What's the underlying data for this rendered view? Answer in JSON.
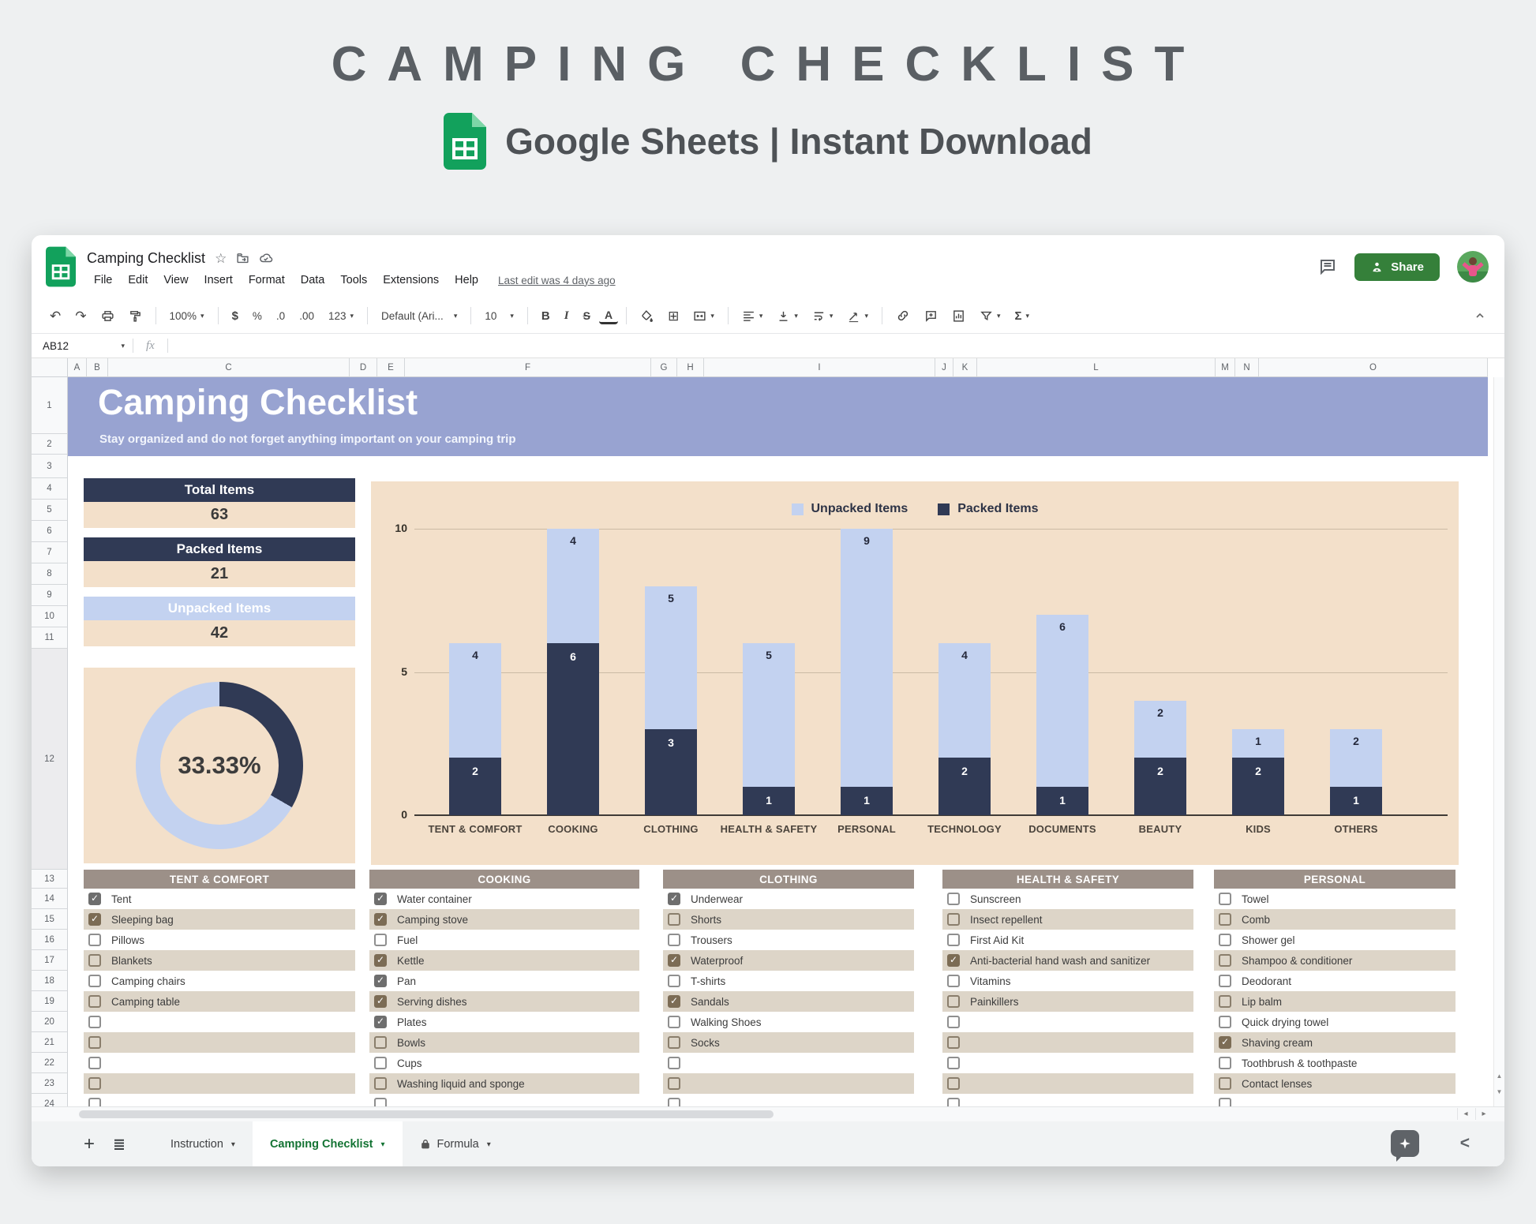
{
  "hero": {
    "title": "CAMPING CHECKLIST",
    "subtitle": "Google Sheets | Instant Download"
  },
  "window": {
    "doc_title": "Camping Checklist",
    "menus": [
      "File",
      "Edit",
      "View",
      "Insert",
      "Format",
      "Data",
      "Tools",
      "Extensions",
      "Help"
    ],
    "last_edit": "Last edit was 4 days ago",
    "share_label": "Share",
    "name_box": "AB12",
    "formula_symbol": "fx",
    "toolbar": {
      "zoom": "100%",
      "currency": "$",
      "percent": "%",
      "decimal_decrease": ".0",
      "decimal_increase": ".00",
      "more_formats": "123",
      "font": "Default (Ari...",
      "font_size": "10",
      "bold": "B",
      "italic": "I",
      "strikethrough": "S",
      "text_color": "A",
      "functions": "Σ"
    },
    "column_letters": [
      "A",
      "B",
      "C",
      "D",
      "E",
      "F",
      "G",
      "H",
      "I",
      "J",
      "K",
      "L",
      "M",
      "N",
      "O"
    ],
    "row_numbers": [
      1,
      2,
      3,
      4,
      5,
      6,
      7,
      8,
      9,
      10,
      11,
      12,
      13,
      14,
      15,
      16,
      17,
      18,
      19,
      20,
      21,
      22,
      23,
      24
    ],
    "tabs": [
      {
        "label": "Instruction",
        "active": false,
        "locked": false
      },
      {
        "label": "Camping Checklist",
        "active": true,
        "locked": false
      },
      {
        "label": "Formula",
        "active": false,
        "locked": true
      }
    ]
  },
  "sheet": {
    "banner_title": "Camping Checklist",
    "banner_subtitle": "Stay organized and do not forget anything important on your camping trip",
    "stats": [
      {
        "label": "Total Items",
        "value": "63",
        "style": "navy"
      },
      {
        "label": "Packed Items",
        "value": "21",
        "style": "navy"
      },
      {
        "label": "Unpacked Items",
        "value": "42",
        "style": "blue"
      }
    ],
    "colors": {
      "navy": "#303a55",
      "light_blue": "#c3d2f0",
      "beige": "#f3e0ca",
      "banner": "#98a3d1",
      "taupe_header": "#9c9088",
      "row_shade": "#ddd5c8",
      "sheets_green": "#12a15c"
    }
  },
  "chart_data": [
    {
      "type": "bar",
      "subtype": "stacked-column",
      "categories": [
        "TENT & COMFORT",
        "COOKING",
        "CLOTHING",
        "HEALTH & SAFETY",
        "PERSONAL",
        "TECHNOLOGY",
        "DOCUMENTS",
        "BEAUTY",
        "KIDS",
        "OTHERS"
      ],
      "series": [
        {
          "name": "Packed Items",
          "color": "#303a55",
          "values": [
            2,
            6,
            3,
            1,
            1,
            2,
            1,
            2,
            2,
            1
          ]
        },
        {
          "name": "Unpacked Items",
          "color": "#c3d2f0",
          "values": [
            4,
            4,
            5,
            5,
            9,
            4,
            6,
            2,
            1,
            2
          ]
        }
      ],
      "ylim": [
        0,
        10
      ],
      "yticks": [
        0,
        5,
        10
      ],
      "grid": true,
      "legend_position": "top-center",
      "legend_order": [
        "Unpacked Items",
        "Packed Items"
      ]
    },
    {
      "type": "pie",
      "subtype": "donut",
      "title": "Packed ratio",
      "center_label": "33.33%",
      "slices": [
        {
          "name": "Packed Items",
          "value": 21,
          "fraction": 0.3333,
          "color": "#303a55"
        },
        {
          "name": "Unpacked Items",
          "value": 42,
          "fraction": 0.6667,
          "color": "#c3d2f0"
        }
      ]
    }
  ],
  "checklists": [
    {
      "title": "TENT & COMFORT",
      "items": [
        {
          "label": "Tent",
          "checked": true
        },
        {
          "label": "Sleeping bag",
          "checked": true
        },
        {
          "label": "Pillows",
          "checked": false
        },
        {
          "label": "Blankets",
          "checked": false
        },
        {
          "label": "Camping chairs",
          "checked": false
        },
        {
          "label": "Camping table",
          "checked": false
        },
        {
          "label": "",
          "checked": false
        },
        {
          "label": "",
          "checked": false
        },
        {
          "label": "",
          "checked": false
        },
        {
          "label": "",
          "checked": false
        },
        {
          "label": "",
          "checked": false
        }
      ]
    },
    {
      "title": "COOKING",
      "items": [
        {
          "label": "Water container",
          "checked": true
        },
        {
          "label": "Camping stove",
          "checked": true
        },
        {
          "label": "Fuel",
          "checked": false
        },
        {
          "label": "Kettle",
          "checked": true
        },
        {
          "label": "Pan",
          "checked": true
        },
        {
          "label": "Serving dishes",
          "checked": true
        },
        {
          "label": "Plates",
          "checked": true
        },
        {
          "label": "Bowls",
          "checked": false
        },
        {
          "label": "Cups",
          "checked": false
        },
        {
          "label": "Washing liquid and sponge",
          "checked": false
        },
        {
          "label": "",
          "checked": false
        }
      ]
    },
    {
      "title": "CLOTHING",
      "items": [
        {
          "label": "Underwear",
          "checked": true
        },
        {
          "label": "Shorts",
          "checked": false
        },
        {
          "label": "Trousers",
          "checked": false
        },
        {
          "label": "Waterproof",
          "checked": true
        },
        {
          "label": "T-shirts",
          "checked": false
        },
        {
          "label": "Sandals",
          "checked": true
        },
        {
          "label": "Walking Shoes",
          "checked": false
        },
        {
          "label": "Socks",
          "checked": false
        },
        {
          "label": "",
          "checked": false
        },
        {
          "label": "",
          "checked": false
        },
        {
          "label": "",
          "checked": false
        }
      ]
    },
    {
      "title": "HEALTH & SAFETY",
      "items": [
        {
          "label": "Sunscreen",
          "checked": false
        },
        {
          "label": "Insect repellent",
          "checked": false
        },
        {
          "label": "First Aid Kit",
          "checked": false
        },
        {
          "label": "Anti-bacterial hand wash and sanitizer",
          "checked": true
        },
        {
          "label": "Vitamins",
          "checked": false
        },
        {
          "label": "Painkillers",
          "checked": false
        },
        {
          "label": "",
          "checked": false
        },
        {
          "label": "",
          "checked": false
        },
        {
          "label": "",
          "checked": false
        },
        {
          "label": "",
          "checked": false
        },
        {
          "label": "",
          "checked": false
        }
      ]
    },
    {
      "title": "PERSONAL",
      "items": [
        {
          "label": "Towel",
          "checked": false
        },
        {
          "label": "Comb",
          "checked": false
        },
        {
          "label": "Shower gel",
          "checked": false
        },
        {
          "label": "Shampoo & conditioner",
          "checked": false
        },
        {
          "label": "Deodorant",
          "checked": false
        },
        {
          "label": "Lip balm",
          "checked": false
        },
        {
          "label": "Quick drying towel",
          "checked": false
        },
        {
          "label": "Shaving cream",
          "checked": true
        },
        {
          "label": "Toothbrush & toothpaste",
          "checked": false
        },
        {
          "label": "Contact lenses",
          "checked": false
        },
        {
          "label": "",
          "checked": false
        }
      ]
    }
  ]
}
